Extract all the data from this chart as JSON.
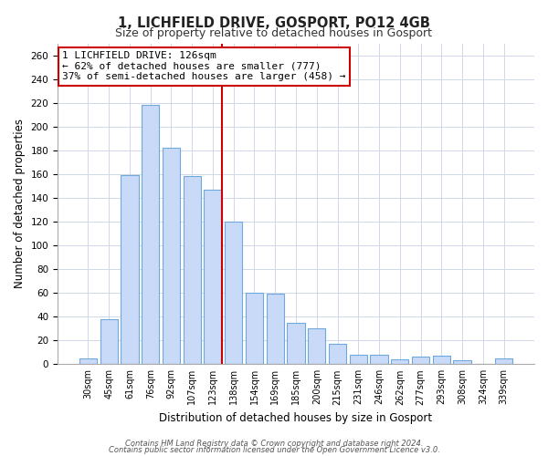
{
  "title": "1, LICHFIELD DRIVE, GOSPORT, PO12 4GB",
  "subtitle": "Size of property relative to detached houses in Gosport",
  "xlabel": "Distribution of detached houses by size in Gosport",
  "ylabel": "Number of detached properties",
  "bar_labels": [
    "30sqm",
    "45sqm",
    "61sqm",
    "76sqm",
    "92sqm",
    "107sqm",
    "123sqm",
    "138sqm",
    "154sqm",
    "169sqm",
    "185sqm",
    "200sqm",
    "215sqm",
    "231sqm",
    "246sqm",
    "262sqm",
    "277sqm",
    "293sqm",
    "308sqm",
    "324sqm",
    "339sqm"
  ],
  "bar_values": [
    5,
    38,
    159,
    218,
    182,
    158,
    147,
    120,
    60,
    59,
    35,
    30,
    17,
    8,
    8,
    4,
    6,
    7,
    3,
    0,
    5
  ],
  "bar_color": "#c9daf8",
  "bar_edge_color": "#6fa8dc",
  "vline_index": 6,
  "vline_color": "#cc0000",
  "annotation_title": "1 LICHFIELD DRIVE: 126sqm",
  "annotation_line1": "← 62% of detached houses are smaller (777)",
  "annotation_line2": "37% of semi-detached houses are larger (458) →",
  "annotation_box_color": "#ffffff",
  "annotation_box_edge": "#cc0000",
  "ylim": [
    0,
    270
  ],
  "yticks": [
    0,
    20,
    40,
    60,
    80,
    100,
    120,
    140,
    160,
    180,
    200,
    220,
    240,
    260
  ],
  "footer1": "Contains HM Land Registry data © Crown copyright and database right 2024.",
  "footer2": "Contains public sector information licensed under the Open Government Licence v3.0.",
  "bg_color": "#ffffff",
  "grid_color": "#d0d8e8"
}
